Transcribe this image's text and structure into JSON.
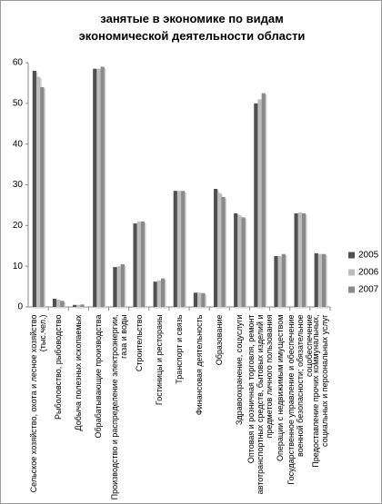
{
  "chart_data": {
    "type": "bar",
    "title": "занятые в экономике по видам экономической деятельности области",
    "categories": [
      "Сельское хозяйство, охота и лесное хозяйство (тыс.чел.)",
      "Рыболовство, рыбоводство",
      "Добыча полезных ископаемых",
      "Обрабатывающие производства",
      "Производство и распределение электроэнергии, газа и воды",
      "Строительство",
      "Гостиницы и рестораны",
      "Транспорт и связь",
      "Финансовая деятельность",
      "Образование",
      "Здравоохранение, соцуслуги",
      "Оптовая и розничная торговля, ремонт автотранспортных средств, бытовых изделий и предметов личного пользования",
      "Операции с недвижимым имуществом",
      "Государственное управление и обеспечение военной безопасности; обязательное соцобеспечение",
      "Предоставление прочих коммунальных, социальных и персональных услуг"
    ],
    "series": [
      {
        "name": "2005",
        "color": "#505050",
        "values": [
          58,
          2,
          0.5,
          58.5,
          9.8,
          20.5,
          6.2,
          28.5,
          3.5,
          29,
          23,
          50,
          12.5,
          23,
          13.2
        ]
      },
      {
        "name": "2006",
        "color": "#bdbdbd",
        "values": [
          56.5,
          1.8,
          0.5,
          58.5,
          10,
          21,
          6.5,
          28.5,
          3.5,
          28,
          22.5,
          51,
          12.5,
          23.2,
          13
        ]
      },
      {
        "name": "2007",
        "color": "#8a8a8a",
        "values": [
          54,
          1.5,
          0.6,
          59,
          10.5,
          21,
          7,
          28.5,
          3.4,
          27,
          22,
          52.5,
          13,
          23,
          13
        ]
      }
    ],
    "ylim": [
      0,
      60
    ],
    "yticks": [
      0,
      10,
      20,
      30,
      40,
      50,
      60
    ],
    "legend": "right"
  }
}
